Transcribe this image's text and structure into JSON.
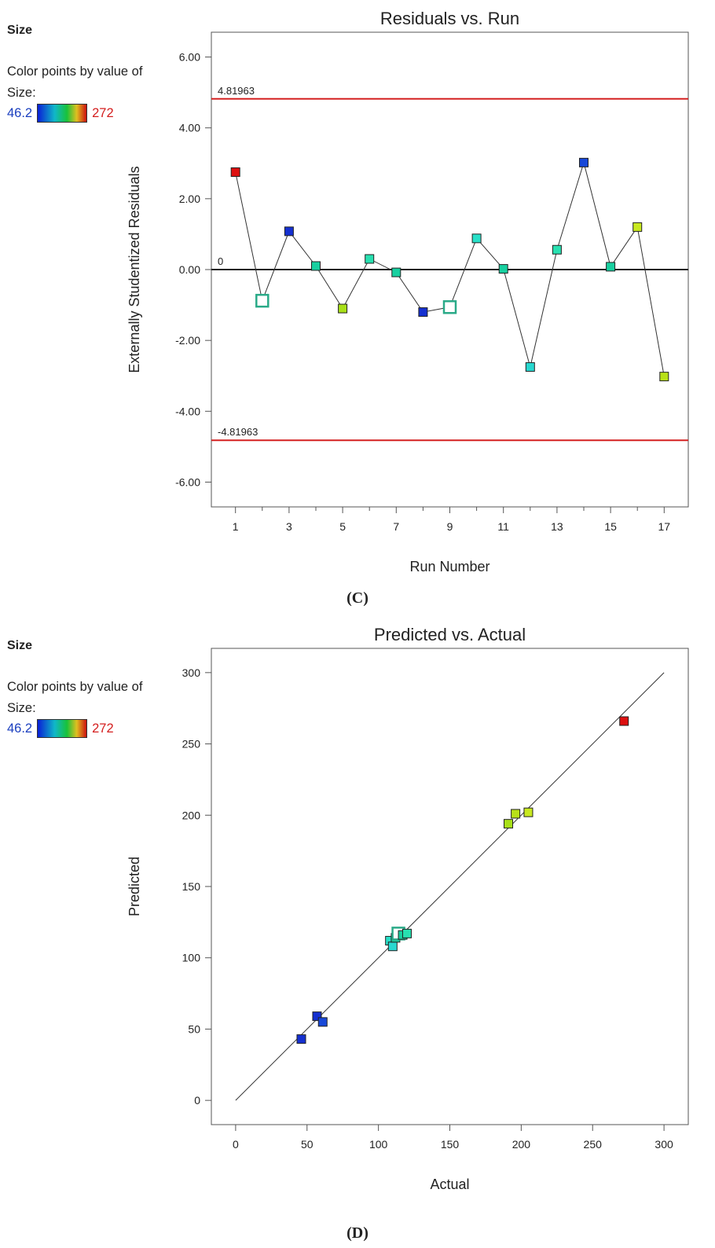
{
  "panel_c": {
    "legend": {
      "title": "Size",
      "caption_line1": "Color points by value of",
      "caption_line2": "Size:",
      "min": "46.2",
      "max": "272"
    },
    "label": "(C)"
  },
  "panel_d": {
    "legend": {
      "title": "Size",
      "caption_line1": "Color points by value of",
      "caption_line2": "Size:",
      "min": "46.2",
      "max": "272"
    },
    "label": "(D)"
  },
  "colors": {
    "limit_line": "#d42020",
    "zero_line": "#222222",
    "axis": "#555555"
  },
  "chart_data": [
    {
      "type": "scatter",
      "title": "Residuals vs. Run",
      "xlabel": "Run Number",
      "ylabel": "Externally Studentized Residuals",
      "xlim": [
        0.1,
        17.9
      ],
      "ylim": [
        -6.7,
        6.7
      ],
      "xticks": [
        1,
        3,
        5,
        7,
        9,
        11,
        13,
        15,
        17
      ],
      "xticks_minor": [
        2,
        4,
        6,
        8,
        10,
        12,
        14,
        16
      ],
      "yticks": [
        -6,
        -4,
        -2,
        0,
        2,
        4,
        6
      ],
      "ytick_labels": [
        "-6.00",
        "-4.00",
        "-2.00",
        "0.00",
        "2.00",
        "4.00",
        "6.00"
      ],
      "reference_lines": [
        {
          "y": 4.81963,
          "label": "4.81963",
          "color": "#d42020"
        },
        {
          "y": 0,
          "label": "0",
          "color": "#222222"
        },
        {
          "y": -4.81963,
          "label": "-4.81963",
          "color": "#d42020"
        }
      ],
      "connected": true,
      "points": [
        {
          "x": 1,
          "y": 2.75,
          "color": "#dd1010"
        },
        {
          "x": 2,
          "y": -0.88,
          "color": "#2aaa88",
          "hollow": true
        },
        {
          "x": 3,
          "y": 1.08,
          "color": "#1530d0"
        },
        {
          "x": 4,
          "y": 0.1,
          "color": "#18d0a0"
        },
        {
          "x": 5,
          "y": -1.1,
          "color": "#a8e018"
        },
        {
          "x": 6,
          "y": 0.3,
          "color": "#28e0b0"
        },
        {
          "x": 7,
          "y": -0.08,
          "color": "#18d0a0"
        },
        {
          "x": 8,
          "y": -1.2,
          "color": "#1530d0"
        },
        {
          "x": 9,
          "y": -1.06,
          "color": "#2aaa88",
          "hollow": true
        },
        {
          "x": 10,
          "y": 0.88,
          "color": "#28e0c8"
        },
        {
          "x": 11,
          "y": 0.02,
          "color": "#18d0a0"
        },
        {
          "x": 12,
          "y": -2.75,
          "color": "#28d8d0"
        },
        {
          "x": 13,
          "y": 0.56,
          "color": "#28e0b0"
        },
        {
          "x": 14,
          "y": 3.02,
          "color": "#1848d8"
        },
        {
          "x": 15,
          "y": 0.08,
          "color": "#18d0a0"
        },
        {
          "x": 16,
          "y": 1.2,
          "color": "#c8e820"
        },
        {
          "x": 17,
          "y": -3.02,
          "color": "#b8e018"
        }
      ]
    },
    {
      "type": "scatter",
      "title": "Predicted vs. Actual",
      "xlabel": "Actual",
      "ylabel": "Predicted",
      "xlim": [
        -17,
        317
      ],
      "ylim": [
        -17,
        317
      ],
      "xticks": [
        0,
        50,
        100,
        150,
        200,
        250,
        300
      ],
      "yticks": [
        0,
        50,
        100,
        150,
        200,
        250,
        300
      ],
      "reference_lines": [
        {
          "x1": 0,
          "y1": 0,
          "x2": 300,
          "y2": 300,
          "color": "#333333"
        }
      ],
      "connected": false,
      "points": [
        {
          "x": 46,
          "y": 43,
          "color": "#1530d0"
        },
        {
          "x": 57,
          "y": 59,
          "color": "#1530d0"
        },
        {
          "x": 61,
          "y": 55,
          "color": "#1848d8"
        },
        {
          "x": 108,
          "y": 112,
          "color": "#28e0c8"
        },
        {
          "x": 110,
          "y": 108,
          "color": "#28d8d0"
        },
        {
          "x": 112,
          "y": 114,
          "color": "#18d0a0"
        },
        {
          "x": 114,
          "y": 117,
          "color": "#2aaa88",
          "hollow": true
        },
        {
          "x": 117,
          "y": 116,
          "color": "#18d0a0"
        },
        {
          "x": 120,
          "y": 117,
          "color": "#28e0b0"
        },
        {
          "x": 191,
          "y": 194,
          "color": "#a8e018"
        },
        {
          "x": 196,
          "y": 201,
          "color": "#b8e018"
        },
        {
          "x": 205,
          "y": 202,
          "color": "#c8e820"
        },
        {
          "x": 272,
          "y": 266,
          "color": "#dd1010"
        }
      ]
    }
  ]
}
